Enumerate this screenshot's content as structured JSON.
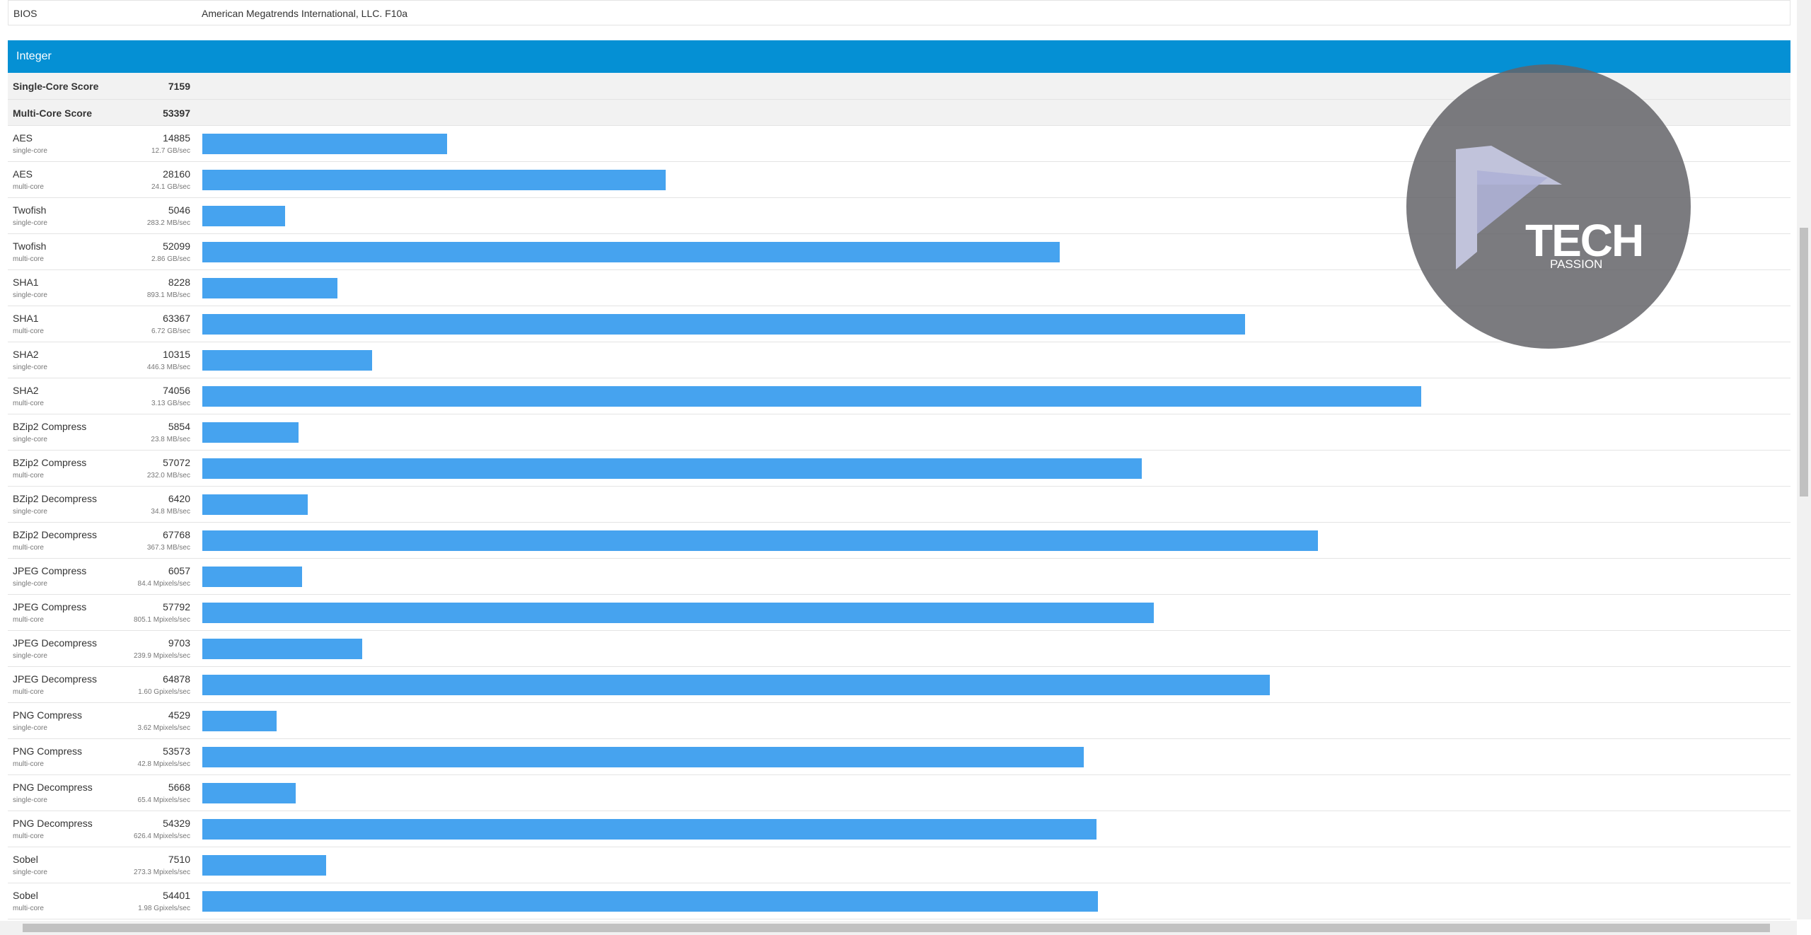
{
  "bios": {
    "label": "BIOS",
    "value": "American Megatrends International, LLC. F10a"
  },
  "section": {
    "title": "Integer",
    "scores": [
      {
        "label": "Single-Core Score",
        "value": 7159
      },
      {
        "label": "Multi-Core Score",
        "value": 53397
      }
    ],
    "rows": [
      {
        "name": "AES",
        "score": 14885,
        "mode": "single-core",
        "rate": "12.7 GB/sec"
      },
      {
        "name": "AES",
        "score": 28160,
        "mode": "multi-core",
        "rate": "24.1 GB/sec"
      },
      {
        "name": "Twofish",
        "score": 5046,
        "mode": "single-core",
        "rate": "283.2 MB/sec"
      },
      {
        "name": "Twofish",
        "score": 52099,
        "mode": "multi-core",
        "rate": "2.86 GB/sec"
      },
      {
        "name": "SHA1",
        "score": 8228,
        "mode": "single-core",
        "rate": "893.1 MB/sec"
      },
      {
        "name": "SHA1",
        "score": 63367,
        "mode": "multi-core",
        "rate": "6.72 GB/sec"
      },
      {
        "name": "SHA2",
        "score": 10315,
        "mode": "single-core",
        "rate": "446.3 MB/sec"
      },
      {
        "name": "SHA2",
        "score": 74056,
        "mode": "multi-core",
        "rate": "3.13 GB/sec"
      },
      {
        "name": "BZip2 Compress",
        "score": 5854,
        "mode": "single-core",
        "rate": "23.8 MB/sec"
      },
      {
        "name": "BZip2 Compress",
        "score": 57072,
        "mode": "multi-core",
        "rate": "232.0 MB/sec"
      },
      {
        "name": "BZip2 Decompress",
        "score": 6420,
        "mode": "single-core",
        "rate": "34.8 MB/sec"
      },
      {
        "name": "BZip2 Decompress",
        "score": 67768,
        "mode": "multi-core",
        "rate": "367.3 MB/sec"
      },
      {
        "name": "JPEG Compress",
        "score": 6057,
        "mode": "single-core",
        "rate": "84.4 Mpixels/sec"
      },
      {
        "name": "JPEG Compress",
        "score": 57792,
        "mode": "multi-core",
        "rate": "805.1 Mpixels/sec"
      },
      {
        "name": "JPEG Decompress",
        "score": 9703,
        "mode": "single-core",
        "rate": "239.9 Mpixels/sec"
      },
      {
        "name": "JPEG Decompress",
        "score": 64878,
        "mode": "multi-core",
        "rate": "1.60 Gpixels/sec"
      },
      {
        "name": "PNG Compress",
        "score": 4529,
        "mode": "single-core",
        "rate": "3.62 Mpixels/sec"
      },
      {
        "name": "PNG Compress",
        "score": 53573,
        "mode": "multi-core",
        "rate": "42.8 Mpixels/sec"
      },
      {
        "name": "PNG Decompress",
        "score": 5668,
        "mode": "single-core",
        "rate": "65.4 Mpixels/sec"
      },
      {
        "name": "PNG Decompress",
        "score": 54329,
        "mode": "multi-core",
        "rate": "626.4 Mpixels/sec"
      },
      {
        "name": "Sobel",
        "score": 7510,
        "mode": "single-core",
        "rate": "273.3 Mpixels/sec"
      },
      {
        "name": "Sobel",
        "score": 54401,
        "mode": "multi-core",
        "rate": "1.98 Gpixels/sec"
      }
    ]
  },
  "watermark": {
    "brand": "TECH",
    "tagline": "PASSION"
  }
}
